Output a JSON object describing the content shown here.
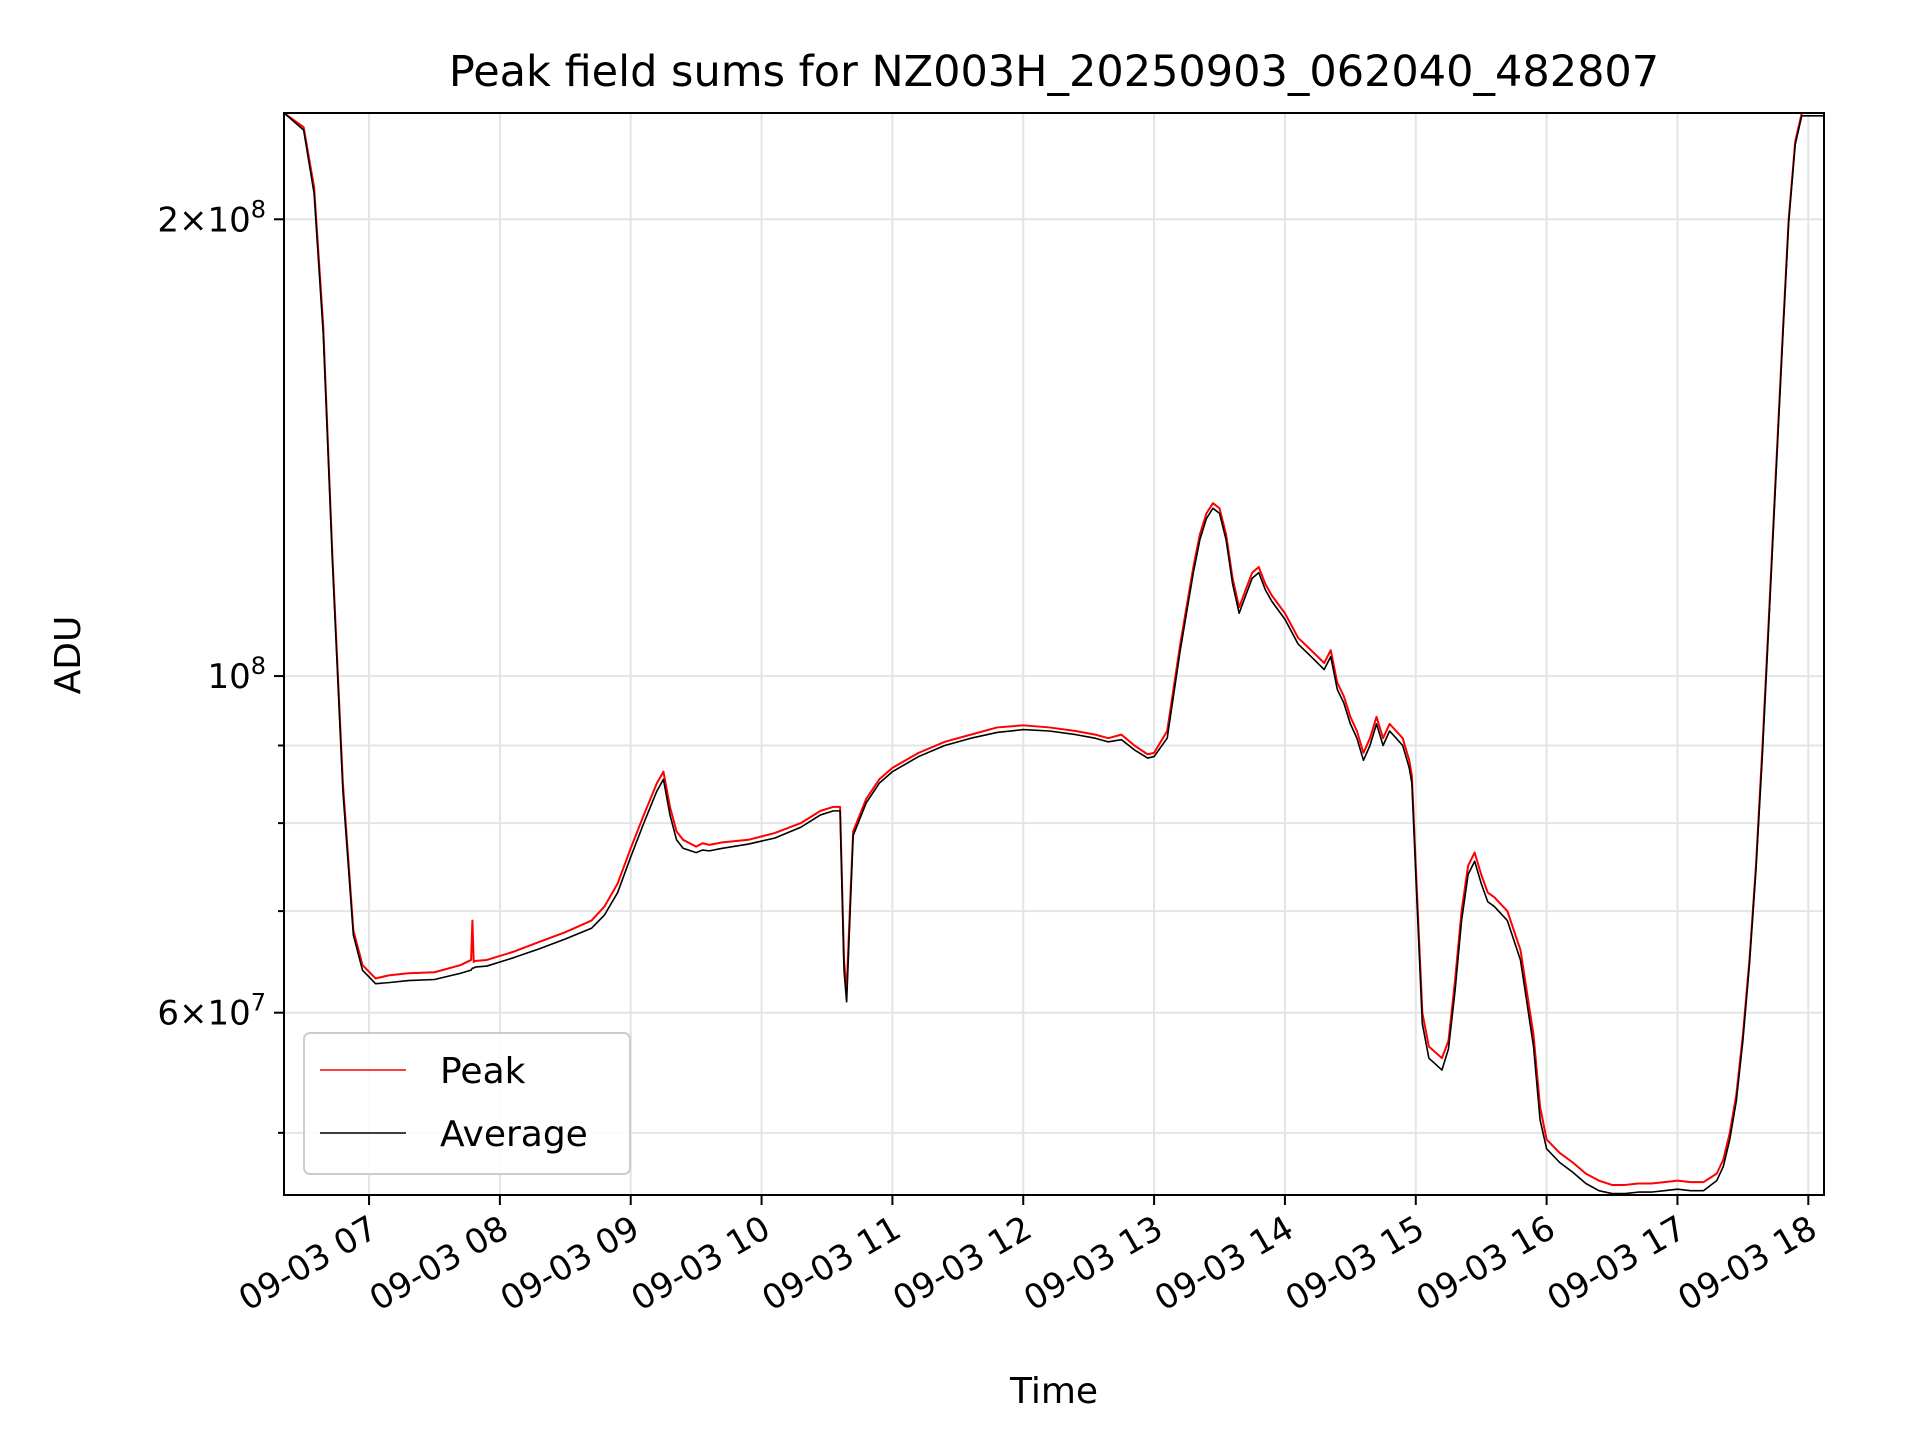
{
  "chart_data": {
    "type": "line",
    "title": "Peak field sums for NZ003H_20250903_062040_482807",
    "xlabel": "Time",
    "ylabel": "ADU",
    "x_unit": "hour of day 2025-09-03",
    "xlim": [
      6.35,
      18.12
    ],
    "ylim": [
      45500000,
      235000000
    ],
    "yscale": "log",
    "grid": true,
    "legend_position": "lower-left",
    "x_ticks": [
      {
        "value": 7,
        "label": "09-03 07"
      },
      {
        "value": 8,
        "label": "09-03 08"
      },
      {
        "value": 9,
        "label": "09-03 09"
      },
      {
        "value": 10,
        "label": "09-03 10"
      },
      {
        "value": 11,
        "label": "09-03 11"
      },
      {
        "value": 12,
        "label": "09-03 12"
      },
      {
        "value": 13,
        "label": "09-03 13"
      },
      {
        "value": 14,
        "label": "09-03 14"
      },
      {
        "value": 15,
        "label": "09-03 15"
      },
      {
        "value": 16,
        "label": "09-03 16"
      },
      {
        "value": 17,
        "label": "09-03 17"
      },
      {
        "value": 18,
        "label": "09-03 18"
      }
    ],
    "y_major_ticks": [
      {
        "value": 60000000,
        "base": "6",
        "exp": "7"
      },
      {
        "value": 100000000,
        "base": "",
        "exp": "8"
      },
      {
        "value": 200000000,
        "base": "2",
        "exp": "8"
      }
    ],
    "y_minor_ticks": [
      50000000,
      70000000,
      80000000,
      90000000,
      300000000
    ],
    "colors": {
      "Peak": "#ff0000",
      "Average": "#000000"
    },
    "series": [
      {
        "name": "Peak",
        "x": [
          6.35,
          6.5,
          6.58,
          6.65,
          6.72,
          6.8,
          6.88,
          6.95,
          7.05,
          7.15,
          7.3,
          7.5,
          7.7,
          7.78,
          7.79,
          7.8,
          7.81,
          7.9,
          8.1,
          8.3,
          8.5,
          8.7,
          8.8,
          8.9,
          9.0,
          9.1,
          9.2,
          9.25,
          9.3,
          9.35,
          9.4,
          9.5,
          9.55,
          9.6,
          9.7,
          9.9,
          10.1,
          10.3,
          10.45,
          10.55,
          10.6,
          10.63,
          10.65,
          10.68,
          10.7,
          10.8,
          10.9,
          11.0,
          11.2,
          11.4,
          11.6,
          11.8,
          12.0,
          12.2,
          12.4,
          12.55,
          12.65,
          12.75,
          12.85,
          12.95,
          13.0,
          13.1,
          13.2,
          13.3,
          13.35,
          13.4,
          13.45,
          13.5,
          13.55,
          13.6,
          13.65,
          13.7,
          13.75,
          13.8,
          13.85,
          13.9,
          14.0,
          14.1,
          14.2,
          14.3,
          14.35,
          14.4,
          14.45,
          14.5,
          14.55,
          14.6,
          14.65,
          14.7,
          14.75,
          14.8,
          14.85,
          14.9,
          14.95,
          14.97,
          15.0,
          15.05,
          15.1,
          15.15,
          15.2,
          15.25,
          15.3,
          15.35,
          15.4,
          15.45,
          15.5,
          15.55,
          15.6,
          15.7,
          15.8,
          15.9,
          15.95,
          16.0,
          16.1,
          16.2,
          16.3,
          16.4,
          16.5,
          16.6,
          16.7,
          16.8,
          16.9,
          17.0,
          17.1,
          17.2,
          17.3,
          17.35,
          17.4,
          17.45,
          17.5,
          17.55,
          17.6,
          17.65,
          17.7,
          17.75,
          17.8,
          17.85,
          17.9,
          17.95,
          18.12
        ],
        "y": [
          235000000,
          230000000,
          210000000,
          170000000,
          120000000,
          85000000,
          68000000,
          64500000,
          63200000,
          63500000,
          63700000,
          63800000,
          64500000,
          65000000,
          69000000,
          64800000,
          64900000,
          65000000,
          65800000,
          66800000,
          67800000,
          69000000,
          70500000,
          73000000,
          77000000,
          81000000,
          85000000,
          86500000,
          82000000,
          79000000,
          78000000,
          77200000,
          77600000,
          77400000,
          77700000,
          78000000,
          78800000,
          80000000,
          81500000,
          82000000,
          82000000,
          65000000,
          62000000,
          72000000,
          79000000,
          83000000,
          85500000,
          87000000,
          89000000,
          90500000,
          91500000,
          92500000,
          92800000,
          92500000,
          92000000,
          91500000,
          91000000,
          91500000,
          90000000,
          88800000,
          89000000,
          92000000,
          105000000,
          118000000,
          124000000,
          128000000,
          130000000,
          129000000,
          124000000,
          116000000,
          111000000,
          114000000,
          117000000,
          118000000,
          115000000,
          113000000,
          110000000,
          106000000,
          104000000,
          102000000,
          104000000,
          99000000,
          97000000,
          94000000,
          92000000,
          89000000,
          91000000,
          94000000,
          91000000,
          93000000,
          92000000,
          91000000,
          88000000,
          86000000,
          75000000,
          60000000,
          57000000,
          56500000,
          56000000,
          57500000,
          63000000,
          70000000,
          75000000,
          76500000,
          74000000,
          72000000,
          71500000,
          70000000,
          66000000,
          58000000,
          52000000,
          49500000,
          48500000,
          47800000,
          47000000,
          46500000,
          46200000,
          46200000,
          46300000,
          46300000,
          46400000,
          46500000,
          46400000,
          46400000,
          47000000,
          48000000,
          50000000,
          53000000,
          58000000,
          65000000,
          75000000,
          90000000,
          110000000,
          135000000,
          165000000,
          200000000,
          225000000,
          235000000,
          235000000
        ]
      },
      {
        "name": "Average",
        "x": [
          6.35,
          6.5,
          6.58,
          6.65,
          6.72,
          6.8,
          6.88,
          6.95,
          7.05,
          7.15,
          7.3,
          7.5,
          7.7,
          7.78,
          7.79,
          7.8,
          7.81,
          7.9,
          8.1,
          8.3,
          8.5,
          8.7,
          8.8,
          8.9,
          9.0,
          9.1,
          9.2,
          9.25,
          9.3,
          9.35,
          9.4,
          9.5,
          9.55,
          9.6,
          9.7,
          9.9,
          10.1,
          10.3,
          10.45,
          10.55,
          10.6,
          10.63,
          10.65,
          10.68,
          10.7,
          10.8,
          10.9,
          11.0,
          11.2,
          11.4,
          11.6,
          11.8,
          12.0,
          12.2,
          12.4,
          12.55,
          12.65,
          12.75,
          12.85,
          12.95,
          13.0,
          13.1,
          13.2,
          13.3,
          13.35,
          13.4,
          13.45,
          13.5,
          13.55,
          13.6,
          13.65,
          13.7,
          13.75,
          13.8,
          13.85,
          13.9,
          14.0,
          14.1,
          14.2,
          14.3,
          14.35,
          14.4,
          14.45,
          14.5,
          14.55,
          14.6,
          14.65,
          14.7,
          14.75,
          14.8,
          14.85,
          14.9,
          14.95,
          14.97,
          15.0,
          15.05,
          15.1,
          15.15,
          15.2,
          15.25,
          15.3,
          15.35,
          15.4,
          15.45,
          15.5,
          15.55,
          15.6,
          15.7,
          15.8,
          15.9,
          15.95,
          16.0,
          16.1,
          16.2,
          16.3,
          16.4,
          16.5,
          16.6,
          16.7,
          16.8,
          16.9,
          17.0,
          17.1,
          17.2,
          17.3,
          17.35,
          17.4,
          17.45,
          17.5,
          17.55,
          17.6,
          17.65,
          17.7,
          17.75,
          17.8,
          17.85,
          17.9,
          17.95,
          18.12
        ],
        "y": [
          235000000,
          229000000,
          208000000,
          168000000,
          119000000,
          84000000,
          67500000,
          64000000,
          62700000,
          62800000,
          63000000,
          63100000,
          63700000,
          64000000,
          64200000,
          64200000,
          64300000,
          64400000,
          65200000,
          66100000,
          67100000,
          68200000,
          69600000,
          72000000,
          76000000,
          80000000,
          84000000,
          85500000,
          81000000,
          78000000,
          77000000,
          76500000,
          76800000,
          76700000,
          77000000,
          77500000,
          78200000,
          79500000,
          81000000,
          81500000,
          81500000,
          64000000,
          61000000,
          71000000,
          78500000,
          82500000,
          85000000,
          86500000,
          88500000,
          90000000,
          91000000,
          91800000,
          92200000,
          92000000,
          91500000,
          91000000,
          90500000,
          90800000,
          89400000,
          88300000,
          88500000,
          91000000,
          104000000,
          117000000,
          123000000,
          127000000,
          129000000,
          128000000,
          123000000,
          115000000,
          110000000,
          113000000,
          116000000,
          117000000,
          114000000,
          112000000,
          109000000,
          105000000,
          103000000,
          101000000,
          103000000,
          98000000,
          96000000,
          93000000,
          91000000,
          88000000,
          90000000,
          93000000,
          90000000,
          92000000,
          91000000,
          90000000,
          87000000,
          85000000,
          74000000,
          59000000,
          56000000,
          55500000,
          55000000,
          56800000,
          62000000,
          69000000,
          74000000,
          75500000,
          73000000,
          71000000,
          70500000,
          69000000,
          65000000,
          57000000,
          51000000,
          48800000,
          47800000,
          47100000,
          46300000,
          45800000,
          45600000,
          45600000,
          45700000,
          45700000,
          45800000,
          45900000,
          45800000,
          45800000,
          46500000,
          47500000,
          49500000,
          52500000,
          57500000,
          64500000,
          74500000,
          89000000,
          109000000,
          134000000,
          164000000,
          199000000,
          224000000,
          234000000,
          234000000
        ]
      }
    ]
  }
}
